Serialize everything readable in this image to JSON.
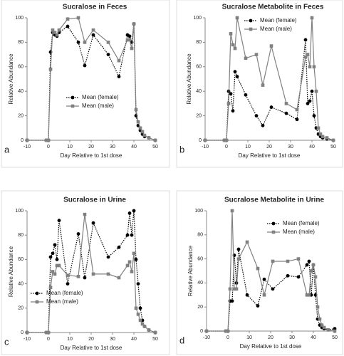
{
  "chart_data": [
    {
      "type": "line",
      "title": "Sucralose in Feces",
      "label": "a",
      "xlabel": "Day Relative to 1st dose",
      "ylabel": "Relative Abundance",
      "x": [
        -10,
        -1,
        0,
        1,
        2,
        3,
        4,
        5,
        9,
        14,
        17,
        21,
        28,
        33,
        37,
        38,
        39,
        40,
        41,
        42,
        43,
        44,
        45,
        47,
        50
      ],
      "series": [
        {
          "name": "Mean (female)",
          "color": "#000000",
          "linestyle": "dotted",
          "marker": "circle",
          "values": [
            0,
            0,
            0,
            72,
            88,
            86,
            85,
            88,
            93,
            80,
            61,
            86,
            70,
            52,
            86,
            85,
            80,
            95,
            20,
            12,
            8,
            5,
            3,
            2,
            0
          ]
        },
        {
          "name": "Mean (male)",
          "color": "#808080",
          "linestyle": "solid",
          "marker": "square",
          "values": [
            0,
            0,
            0,
            58,
            90,
            88,
            86,
            90,
            99,
            100,
            80,
            90,
            80,
            65,
            82,
            82,
            75,
            95,
            25,
            15,
            10,
            7,
            4,
            2,
            0
          ]
        }
      ],
      "xlim": [
        -10,
        50
      ],
      "ylim": [
        0,
        100
      ],
      "xticks": [
        -10,
        0,
        10,
        20,
        30,
        40,
        50
      ],
      "yticks": [
        0,
        20,
        40,
        60,
        80,
        100
      ],
      "grid": false,
      "legend": "lower center"
    },
    {
      "type": "line",
      "title": "Sucralose Metabolite in Feces",
      "label": "b",
      "xlabel": "Day Relative to 1st dose",
      "ylabel": "Relative Abundance",
      "x": [
        -10,
        -1,
        0,
        1,
        2,
        3,
        4,
        5,
        9,
        14,
        17,
        21,
        28,
        33,
        37,
        38,
        39,
        40,
        41,
        42,
        43,
        44,
        45,
        47,
        50
      ],
      "series": [
        {
          "name": "Mean (female)",
          "color": "#000000",
          "linestyle": "dotted",
          "marker": "circle",
          "values": [
            0,
            0,
            0,
            40,
            38,
            24,
            56,
            52,
            37,
            20,
            12,
            27,
            22,
            17,
            82,
            30,
            32,
            40,
            20,
            10,
            5,
            3,
            2,
            1,
            0
          ]
        },
        {
          "name": "Mean (male)",
          "color": "#808080",
          "linestyle": "solid",
          "marker": "square",
          "values": [
            0,
            0,
            0,
            30,
            87,
            78,
            75,
            100,
            67,
            70,
            45,
            77,
            30,
            25,
            68,
            70,
            60,
            100,
            60,
            40,
            10,
            5,
            3,
            2,
            0
          ]
        }
      ],
      "xlim": [
        -10,
        50
      ],
      "ylim": [
        0,
        100
      ],
      "xticks": [
        -10,
        0,
        10,
        20,
        30,
        40,
        50
      ],
      "yticks": [
        0,
        20,
        40,
        60,
        80,
        100
      ],
      "grid": false,
      "legend": "upper center"
    },
    {
      "type": "line",
      "title": "Sucralose in Urine",
      "label": "c",
      "xlabel": "Day Relative to 1st dose",
      "ylabel": "Relative Abundance",
      "x": [
        -10,
        -1,
        0,
        1,
        2,
        3,
        4,
        5,
        9,
        14,
        17,
        21,
        28,
        33,
        37,
        38,
        39,
        40,
        41,
        42,
        43,
        44,
        45,
        47,
        50
      ],
      "series": [
        {
          "name": "Mean (female)",
          "color": "#000000",
          "linestyle": "dotted",
          "marker": "circle",
          "values": [
            0,
            0,
            0,
            62,
            65,
            72,
            60,
            92,
            40,
            81,
            45,
            90,
            62,
            70,
            80,
            98,
            80,
            100,
            60,
            40,
            20,
            10,
            5,
            2,
            0
          ]
        },
        {
          "name": "Mean (male)",
          "color": "#808080",
          "linestyle": "solid",
          "marker": "square",
          "values": [
            0,
            0,
            0,
            37,
            50,
            48,
            55,
            55,
            47,
            46,
            97,
            48,
            48,
            45,
            55,
            58,
            50,
            65,
            20,
            15,
            10,
            7,
            5,
            2,
            0
          ]
        }
      ],
      "xlim": [
        -10,
        50
      ],
      "ylim": [
        0,
        100
      ],
      "xticks": [
        -10,
        0,
        10,
        20,
        30,
        40,
        50
      ],
      "yticks": [
        0,
        20,
        40,
        60,
        80,
        100
      ],
      "grid": false,
      "legend": "lower left"
    },
    {
      "type": "line",
      "title": "Sucralose Metabolite in Urine",
      "label": "d",
      "xlabel": "Day Relative to 1st dose",
      "ylabel": "Relative Abundance",
      "x": [
        -10,
        -1,
        0,
        1,
        2,
        3,
        4,
        5,
        9,
        14,
        17,
        21,
        28,
        33,
        37,
        38,
        39,
        40,
        41,
        42,
        43,
        44,
        45,
        47,
        50
      ],
      "series": [
        {
          "name": "Mean (female)",
          "color": "#000000",
          "linestyle": "dotted",
          "marker": "circle",
          "values": [
            0,
            0,
            0,
            25,
            25,
            63,
            40,
            68,
            30,
            21,
            43,
            35,
            46,
            45,
            55,
            58,
            30,
            55,
            30,
            10,
            5,
            3,
            2,
            1,
            2
          ]
        },
        {
          "name": "Mean (male)",
          "color": "#808080",
          "linestyle": "solid",
          "marker": "square",
          "values": [
            0,
            0,
            0,
            35,
            100,
            35,
            35,
            60,
            74,
            52,
            30,
            58,
            58,
            60,
            30,
            30,
            50,
            55,
            45,
            20,
            10,
            5,
            3,
            1,
            0
          ]
        }
      ],
      "xlim": [
        -10,
        50
      ],
      "ylim": [
        0,
        100
      ],
      "xticks": [
        -10,
        0,
        10,
        20,
        30,
        40,
        50
      ],
      "yticks": [
        0,
        20,
        40,
        60,
        80,
        100
      ],
      "grid": false,
      "legend": "upper right"
    }
  ]
}
